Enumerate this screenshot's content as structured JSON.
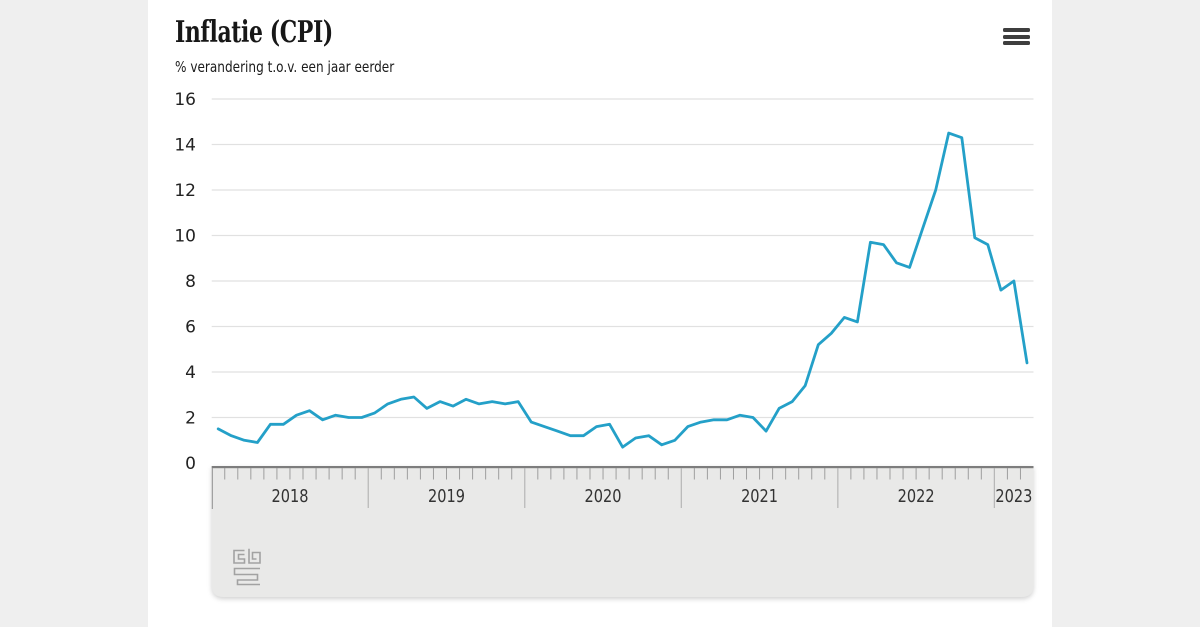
{
  "header": {
    "title": "Inflatie (CPI)",
    "subtitle": "% verandering t.o.v. een jaar eerder"
  },
  "menu": {
    "icon": "hamburger-menu-icon"
  },
  "footer": {
    "logo": "cbs-logo"
  },
  "chart_data": {
    "type": "line",
    "title": "Inflatie (CPI)",
    "ylabel": "% verandering t.o.v. een jaar eerder",
    "unit": "%",
    "ylim": [
      0,
      16
    ],
    "yticks": [
      0,
      2,
      4,
      6,
      8,
      10,
      12,
      14,
      16
    ],
    "grid": true,
    "legend": false,
    "line_color": "#24a0c8",
    "x_start": "2018-01",
    "x_end": "2023-03",
    "years": [
      {
        "label": "2018",
        "months": 12
      },
      {
        "label": "2019",
        "months": 12
      },
      {
        "label": "2020",
        "months": 12
      },
      {
        "label": "2021",
        "months": 12
      },
      {
        "label": "2022",
        "months": 12
      },
      {
        "label": "2023",
        "months": 3
      }
    ],
    "series": [
      {
        "name": "Inflatie (CPI)",
        "values": [
          1.5,
          1.2,
          1.0,
          0.9,
          1.7,
          1.7,
          2.1,
          2.3,
          1.9,
          2.1,
          2.0,
          2.0,
          2.2,
          2.6,
          2.8,
          2.9,
          2.4,
          2.7,
          2.5,
          2.8,
          2.6,
          2.7,
          2.6,
          2.7,
          1.8,
          1.6,
          1.4,
          1.2,
          1.2,
          1.6,
          1.7,
          0.7,
          1.1,
          1.2,
          0.8,
          1.0,
          1.6,
          1.8,
          1.9,
          1.9,
          2.1,
          2.0,
          1.4,
          2.4,
          2.7,
          3.4,
          5.2,
          5.7,
          6.4,
          6.2,
          9.7,
          9.6,
          8.8,
          8.6,
          10.3,
          12.0,
          14.5,
          14.3,
          9.9,
          9.6,
          7.6,
          8.0,
          4.4
        ]
      }
    ]
  }
}
